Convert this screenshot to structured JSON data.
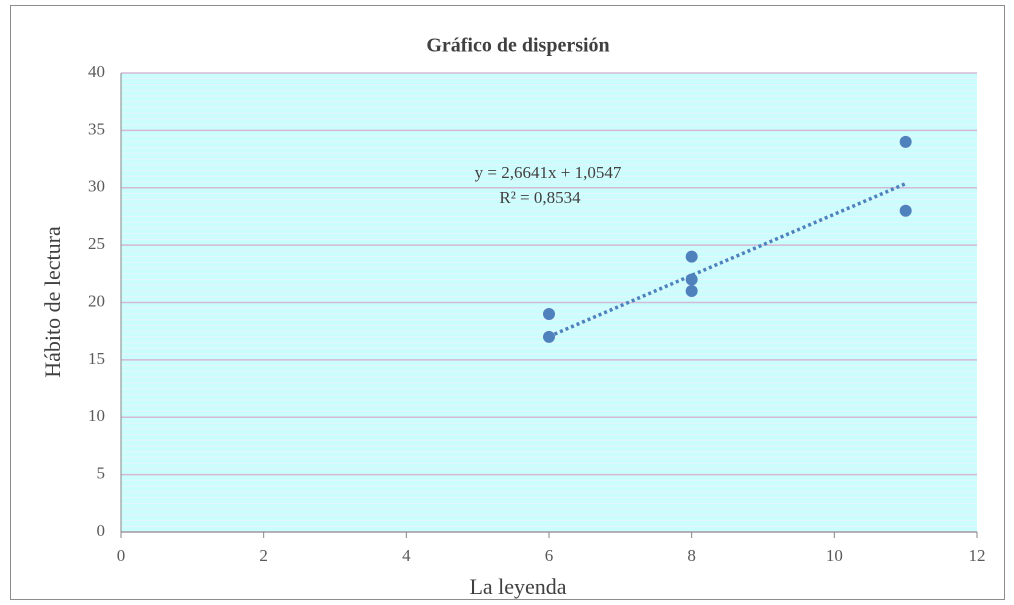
{
  "chart_data": {
    "type": "scatter",
    "title": "Gráfico de dispersión",
    "x_label": "La leyenda",
    "y_label": "Hábito de lectura",
    "series": [
      {
        "name": "Hábito de lectura",
        "color": "#4f81bd",
        "x": [
          6,
          6,
          8,
          8,
          8,
          11,
          11
        ],
        "values": [
          19,
          17,
          24,
          22,
          21,
          34,
          28
        ]
      }
    ],
    "trendline": {
      "equation": "y = 2,6641x  + 1,0547",
      "r_squared": "R² = 0,8534",
      "slope": 2.6641,
      "intercept": 1.0547,
      "color": "#4f81bd"
    },
    "xlim": [
      0,
      12
    ],
    "xticks": [
      0,
      2,
      4,
      6,
      8,
      10,
      12
    ],
    "ylim": [
      0,
      40
    ],
    "yticks": [
      0,
      5,
      10,
      15,
      20,
      25,
      30,
      35,
      40
    ],
    "grid": true
  }
}
